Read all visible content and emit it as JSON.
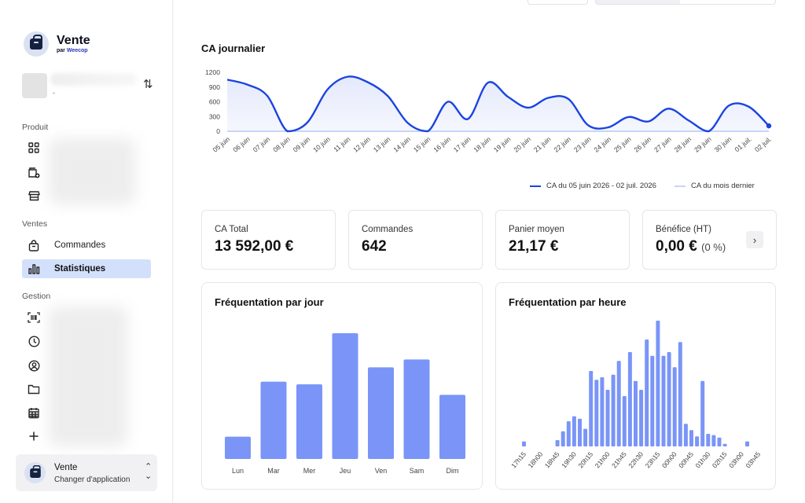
{
  "sidebar": {
    "app_name": "Vente",
    "app_by_prefix": "par ",
    "app_by_name": "Weecop",
    "store_placeholder": "-",
    "sections": {
      "product": "Produit",
      "sales": "Ventes",
      "management": "Gestion"
    },
    "product_icons": [
      "grid-icon",
      "wallet-add-icon",
      "store-icon"
    ],
    "sales_items": [
      {
        "label": "Commandes",
        "icon": "shopping-bag-icon",
        "active": false
      },
      {
        "label": "Statistiques",
        "icon": "bar-chart-icon",
        "active": true
      }
    ],
    "management_icons": [
      "barcode-scan-icon",
      "clock-icon",
      "user-circle-icon",
      "folder-icon",
      "calendar-icon",
      "plus-icon"
    ],
    "switcher": {
      "title": "Vente",
      "subtitle": "Changer d'application"
    }
  },
  "colors": {
    "accent": "#1a44e0",
    "accent_fill": "#e4e9fb",
    "bar_fill": "#7a95f7",
    "previous_line": "#c9d5f7",
    "active_nav": "#d3e0fb"
  },
  "daily_chart": {
    "title": "CA journalier",
    "legend_current": "CA du 05 juin 2026 - 02 juil. 2026",
    "legend_previous": "CA du mois dernier"
  },
  "kpis": [
    {
      "label": "CA Total",
      "value": "13 592,00 €",
      "note": ""
    },
    {
      "label": "Commandes",
      "value": "642",
      "note": ""
    },
    {
      "label": "Panier moyen",
      "value": "21,17 €",
      "note": ""
    },
    {
      "label": "Bénéfice (HT)",
      "value": "0,00 €",
      "note": "(0 %)"
    }
  ],
  "by_day_title": "Fréquentation par jour",
  "by_hour_title": "Fréquentation par heure",
  "chart_data": [
    {
      "type": "area",
      "title": "CA journalier",
      "x": [
        "05 juin",
        "06 juin",
        "07 juin",
        "08 juin",
        "09 juin",
        "10 juin",
        "11 juin",
        "12 juin",
        "13 juin",
        "14 juin",
        "15 juin",
        "16 juin",
        "17 juin",
        "18 juin",
        "19 juin",
        "20 juin",
        "21 juin",
        "22 juin",
        "23 juin",
        "24 juin",
        "25 juin",
        "26 juin",
        "27 juin",
        "28 juin",
        "29 juin",
        "30 juin",
        "01 juil.",
        "02 juil."
      ],
      "series": [
        {
          "name": "CA du 05 juin 2026 - 02 juil. 2026",
          "values": [
            1050,
            950,
            720,
            0,
            180,
            850,
            1110,
            1000,
            720,
            170,
            0,
            600,
            250,
            990,
            700,
            480,
            680,
            660,
            120,
            80,
            290,
            200,
            460,
            220,
            0,
            520,
            500,
            110
          ]
        },
        {
          "name": "CA du mois dernier",
          "values": [
            0,
            0,
            0,
            0,
            0,
            0,
            0,
            0,
            0,
            0,
            0,
            0,
            0,
            0,
            0,
            0,
            0,
            0,
            0,
            0,
            0,
            0,
            0,
            0,
            0,
            0,
            0,
            0
          ]
        }
      ],
      "ylim": [
        0,
        1200
      ],
      "yticks": [
        0,
        300,
        600,
        900,
        1200
      ],
      "grid": false,
      "legend": "bottom-right"
    },
    {
      "type": "bar",
      "title": "Fréquentation par jour",
      "categories": [
        "Lun",
        "Mar",
        "Mer",
        "Jeu",
        "Ven",
        "Sam",
        "Dim"
      ],
      "values": [
        17,
        59,
        57,
        96,
        70,
        76,
        49
      ],
      "grid": false
    },
    {
      "type": "bar",
      "title": "Fréquentation par heure",
      "categories": [
        "17h15",
        "17h30",
        "17h45",
        "18h00",
        "18h15",
        "18h30",
        "18h45",
        "19h00",
        "19h15",
        "19h30",
        "19h45",
        "20h00",
        "20h15",
        "20h30",
        "20h45",
        "21h00",
        "21h15",
        "21h30",
        "21h45",
        "22h00",
        "22h15",
        "22h30",
        "22h45",
        "23h00",
        "23h15",
        "23h30",
        "23h45",
        "00h00",
        "00h15",
        "00h30",
        "00h45",
        "01h00",
        "01h15",
        "01h30",
        "01h45",
        "02h00",
        "02h15",
        "02h30",
        "02h45",
        "03h00",
        "03h15",
        "03h30",
        "03h45",
        "04h00"
      ],
      "tick_labels": [
        "17h15",
        "18h00",
        "18h45",
        "19h30",
        "20h15",
        "21h00",
        "21h45",
        "22h30",
        "23h15",
        "00h00",
        "00h45",
        "01h30",
        "02h15",
        "03h00",
        "03h45"
      ],
      "values": [
        4,
        0,
        0,
        0,
        0,
        0,
        5,
        12,
        20,
        24,
        22,
        14,
        60,
        53,
        55,
        45,
        57,
        68,
        40,
        75,
        52,
        45,
        85,
        72,
        100,
        72,
        75,
        63,
        83,
        18,
        13,
        8,
        52,
        10,
        9,
        7,
        2,
        0,
        0,
        0,
        4,
        0,
        0,
        0
      ],
      "grid": false
    }
  ]
}
